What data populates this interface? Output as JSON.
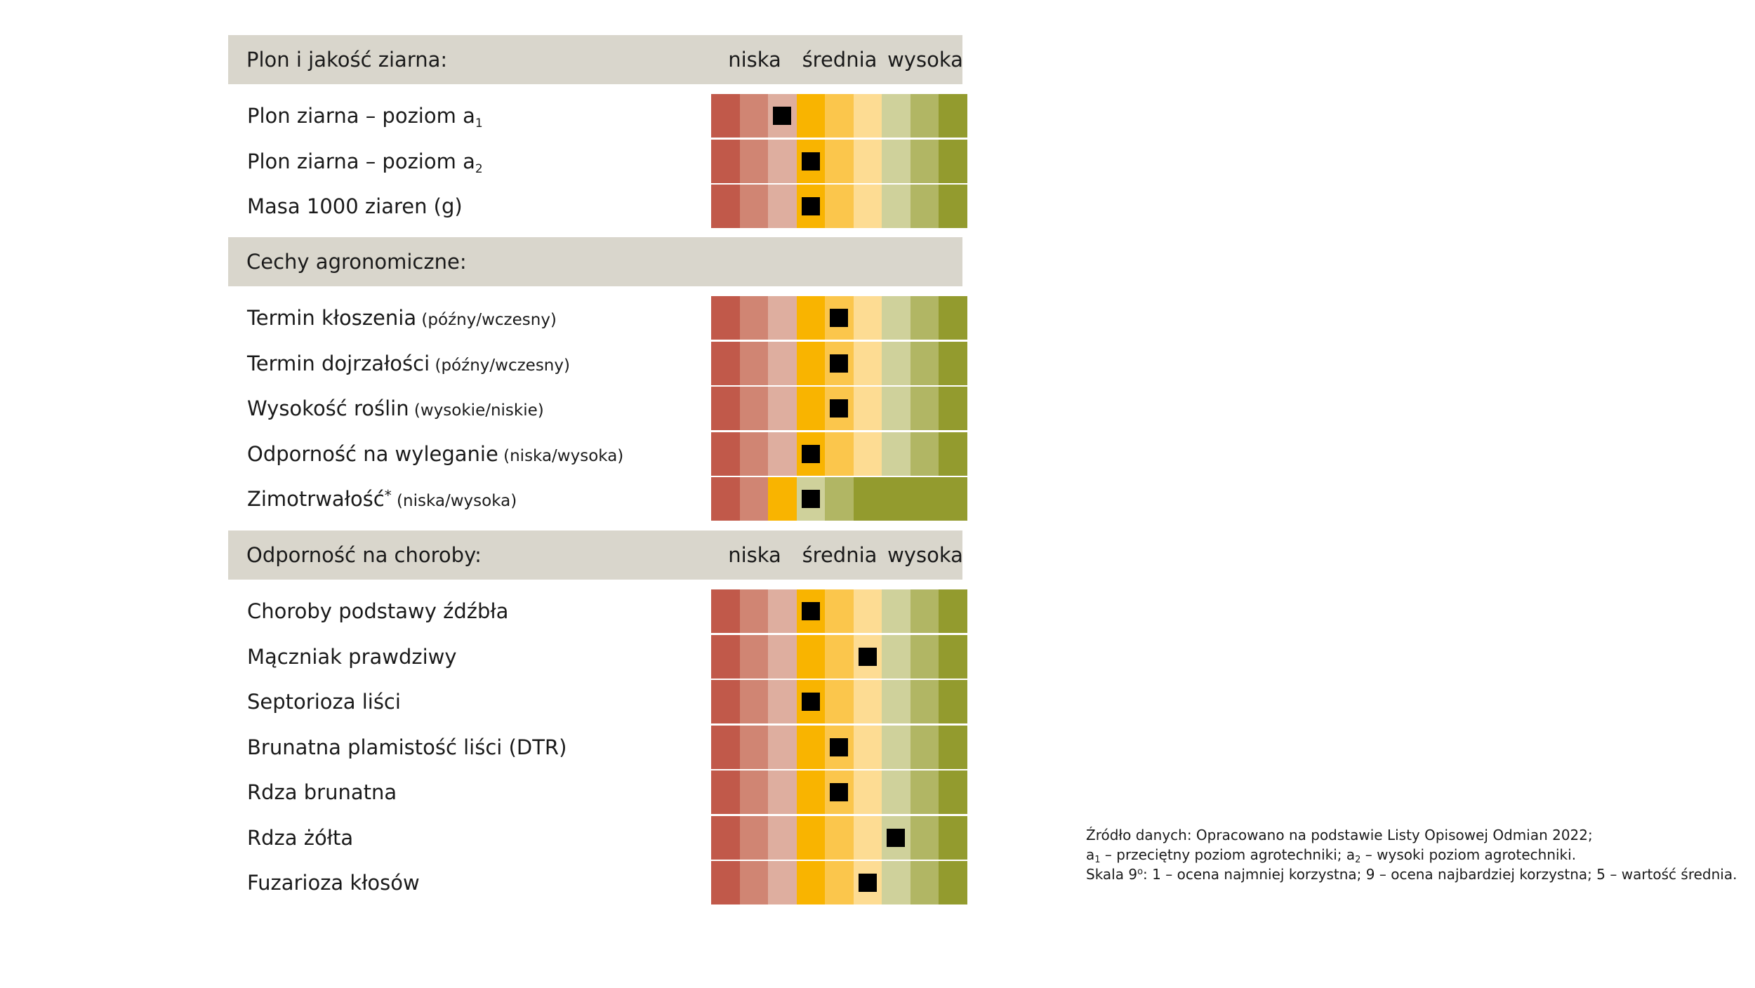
{
  "chart_data": {
    "type": "table",
    "scale": {
      "min": 1,
      "max": 9,
      "labels": [
        "niska",
        "średnia",
        "wysoka"
      ]
    },
    "colors": {
      "c1": "#c1594a",
      "c2": "#d08573",
      "c3": "#deae9f",
      "c4": "#f9b400",
      "c5": "#fbc64c",
      "c6": "#fddc93",
      "c7": "#cfd19b",
      "c8": "#b1b664",
      "c9": "#939b2e",
      "marker": "#000000",
      "section_bg": "#d9d6cc"
    },
    "sections": [
      {
        "title": "Plon i jakość ziarna:",
        "show_scale_labels": true,
        "rows": [
          {
            "label": "Plon ziarna – poziom a",
            "sub": "1",
            "qualifier": "",
            "value": 3,
            "palette": "standard"
          },
          {
            "label": "Plon ziarna – poziom a",
            "sub": "2",
            "qualifier": "",
            "value": 4,
            "palette": "standard"
          },
          {
            "label": "Masa 1000 ziaren (g)",
            "sub": "",
            "qualifier": "",
            "value": 4,
            "palette": "standard"
          }
        ]
      },
      {
        "title": "Cechy agronomiczne:",
        "show_scale_labels": false,
        "rows": [
          {
            "label": "Termin kłoszenia",
            "sub": "",
            "qualifier": "(późny/wczesny)",
            "value": 5,
            "palette": "standard"
          },
          {
            "label": "Termin dojrzałości",
            "sub": "",
            "qualifier": "(późny/wczesny)",
            "value": 5,
            "palette": "standard"
          },
          {
            "label": "Wysokość roślin",
            "sub": "",
            "qualifier": "(wysokie/niskie)",
            "value": 5,
            "palette": "standard"
          },
          {
            "label": "Odporność na wyleganie",
            "sub": "",
            "qualifier": "(niska/wysoka)",
            "value": 4,
            "palette": "standard"
          },
          {
            "label": "Zimotrwałość",
            "sup": "*",
            "qualifier": "(niska/wysoka)",
            "value": 4,
            "palette": "winter"
          }
        ]
      },
      {
        "title": "Odporność na choroby:",
        "show_scale_labels": true,
        "rows": [
          {
            "label": "Choroby podstawy źdźbła",
            "sub": "",
            "qualifier": "",
            "value": 4,
            "palette": "standard"
          },
          {
            "label": "Mączniak prawdziwy",
            "sub": "",
            "qualifier": "",
            "value": 6,
            "palette": "standard"
          },
          {
            "label": "Septorioza liści",
            "sub": "",
            "qualifier": "",
            "value": 4,
            "palette": "standard"
          },
          {
            "label": "Brunatna plamistość liści (DTR)",
            "sub": "",
            "qualifier": "",
            "value": 5,
            "palette": "standard"
          },
          {
            "label": "Rdza brunatna",
            "sub": "",
            "qualifier": "",
            "value": 5,
            "palette": "standard"
          },
          {
            "label": "Rdza żółta",
            "sub": "",
            "qualifier": "",
            "value": 7,
            "palette": "standard"
          },
          {
            "label": "Fuzarioza kłosów",
            "sub": "",
            "qualifier": "",
            "value": 6,
            "palette": "standard"
          }
        ]
      }
    ]
  },
  "footnote": {
    "line1": "Źródło danych: Opracowano na podstawie Listy Opisowej Odmian 2022;",
    "line2_a": "a",
    "line2_a_sub": "1",
    "line2_b": " – przeciętny poziom agrotechniki; a",
    "line2_b_sub": "2",
    "line2_c": " – wysoki poziom agrotechniki.",
    "line3_a": "Skala 9",
    "line3_sup": "o",
    "line3_b": ": 1 – ocena najmniej korzystna; 9 – ocena najbardziej korzystna; 5 – wartość średnia."
  }
}
